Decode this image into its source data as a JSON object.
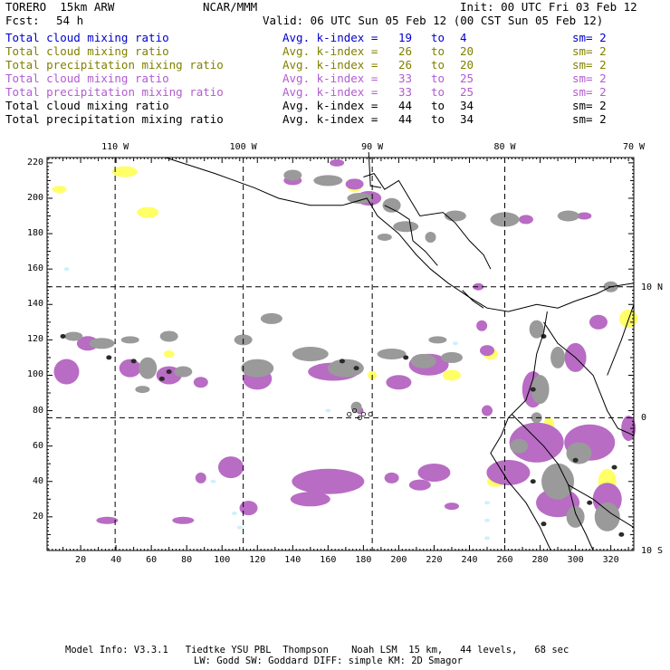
{
  "header": {
    "model": "TORERO  15km ARW",
    "center": "NCAR/MMM",
    "init": "Init: 00 UTC Fri 03 Feb 12",
    "fcst_label": "Fcst:",
    "fcst_value": "54 h",
    "valid": "Valid: 06 UTC Sun 05 Feb 12 (00 CST Sun 05 Feb 12)"
  },
  "legend": [
    {
      "field": "Total cloud mixing ratio",
      "index_label": "Avg. k-index =",
      "from": "19",
      "to_word": "to",
      "to": "4",
      "sm": "sm= 2",
      "color": "#0000cc"
    },
    {
      "field": "Total cloud mixing ratio",
      "index_label": "Avg. k-index =",
      "from": "26",
      "to_word": "to",
      "to": "20",
      "sm": "sm= 2",
      "color": "#808000"
    },
    {
      "field": "Total precipitation mixing ratio",
      "index_label": "Avg. k-index =",
      "from": "26",
      "to_word": "to",
      "to": "20",
      "sm": "sm= 2",
      "color": "#808000"
    },
    {
      "field": "Total cloud mixing ratio",
      "index_label": "Avg. k-index =",
      "from": "33",
      "to_word": "to",
      "to": "25",
      "sm": "sm= 2",
      "color": "#b25ccf"
    },
    {
      "field": "Total precipitation mixing ratio",
      "index_label": "Avg. k-index =",
      "from": "33",
      "to_word": "to",
      "to": "25",
      "sm": "sm= 2",
      "color": "#b25ccf"
    },
    {
      "field": "Total cloud mixing ratio",
      "index_label": "Avg. k-index =",
      "from": "44",
      "to_word": "to",
      "to": "34",
      "sm": "sm= 2",
      "color": "#000000"
    },
    {
      "field": "Total precipitation mixing ratio",
      "index_label": "Avg. k-index =",
      "from": "44",
      "to_word": "to",
      "to": "34",
      "sm": "sm= 2",
      "color": "#000000"
    }
  ],
  "chart_data": {
    "type": "heatmap",
    "x_ticks": [
      20,
      40,
      60,
      80,
      100,
      120,
      140,
      160,
      180,
      200,
      220,
      240,
      260,
      280,
      300,
      320
    ],
    "y_ticks": [
      20,
      40,
      60,
      80,
      100,
      120,
      140,
      160,
      180,
      200,
      220
    ],
    "xlim": [
      1,
      333
    ],
    "ylim": [
      1,
      223
    ],
    "lon_labels": [
      {
        "label": "110 W",
        "x": 39.5
      },
      {
        "label": "100 W",
        "x": 112
      },
      {
        "label": "90 W",
        "x": 185
      },
      {
        "label": "80 W",
        "x": 260
      },
      {
        "label": "70 W",
        "x": 333
      }
    ],
    "lat_labels": [
      {
        "label": "10 N",
        "y": 150
      },
      {
        "label": "0",
        "y": 76
      },
      {
        "label": "10 S",
        "y": 1
      }
    ],
    "dashed_grid_x": [
      39.5,
      112,
      185,
      260
    ],
    "dashed_grid_y": [
      150,
      76
    ],
    "colors": {
      "cloud_low": "#0000cc",
      "precip_yellow": "#ffff66",
      "precip_purple": "#b86cc4",
      "cloud_gray": "#9a9a9a",
      "cloud_dark": "#2a2a2a",
      "light_blue": "#cfefff"
    }
  },
  "footer": {
    "line1": "Model Info: V3.3.1   Tiedtke YSU PBL  Thompson    Noah LSM  15 km,   44 levels,   68 sec",
    "line2": "LW: Godd SW: Goddard DIFF: simple KM: 2D Smagor"
  }
}
